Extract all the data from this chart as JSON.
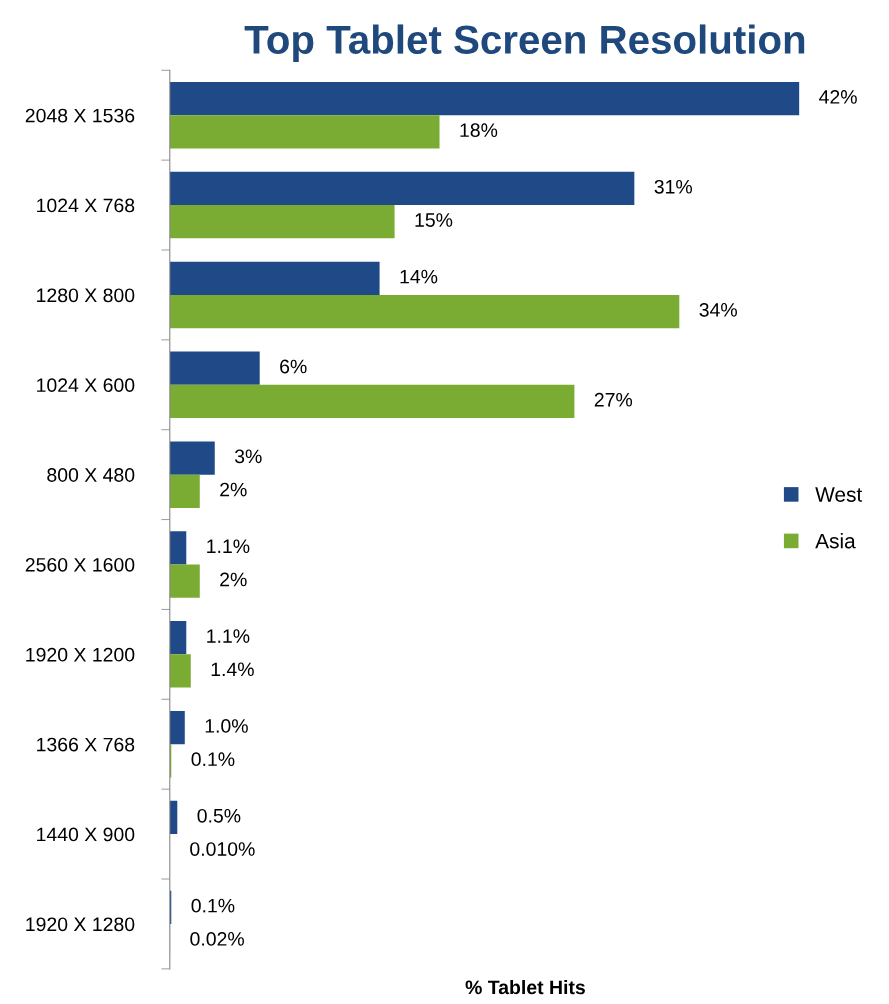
{
  "chart_data": {
    "type": "bar",
    "orientation": "horizontal",
    "title": "Top Tablet Screen Resolution",
    "xlabel": "% Tablet Hits",
    "categories": [
      "2048 X 1536",
      "1024 X 768",
      "1280 X 800",
      "1024 X 600",
      "800 X 480",
      "2560 X 1600",
      "1920 X 1200",
      "1366 X 768",
      "1440 X 900",
      "1920 X 1280"
    ],
    "series": [
      {
        "name": "West",
        "color": "#1f4a87",
        "values": [
          42,
          31,
          14,
          6,
          3,
          1.1,
          1.1,
          1.0,
          0.5,
          0.1
        ],
        "value_labels": [
          "42%",
          "31%",
          "14%",
          "6%",
          "3%",
          "1.1%",
          "1.1%",
          "1.0%",
          "0.5%",
          "0.1%"
        ]
      },
      {
        "name": "Asia",
        "color": "#7aab33",
        "values": [
          18,
          15,
          34,
          27,
          2,
          2,
          1.4,
          0.1,
          0.01,
          0.02
        ],
        "value_labels": [
          "18%",
          "15%",
          "34%",
          "27%",
          "2%",
          "2%",
          "1.4%",
          "0.1%",
          "0.010%",
          "0.02%"
        ]
      }
    ],
    "legend": "right",
    "grid": false
  }
}
